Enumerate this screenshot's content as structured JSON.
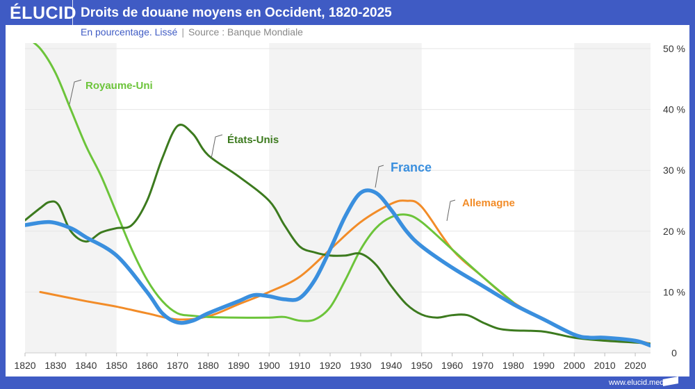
{
  "header": {
    "logo": "ÉLUCID",
    "title": "Droits de douane moyens en Occident, 1820-2025"
  },
  "subtitle": {
    "unit": "En pourcentage. Lissé",
    "separator": "|",
    "source": "Source : Banque Mondiale"
  },
  "footer": {
    "url": "www.elucid.media"
  },
  "colors": {
    "brand": "#3f5bc4",
    "royaume_uni": "#6cc43a",
    "etats_unis": "#3c7a1e",
    "france": "#3a8fde",
    "allemagne": "#f28c28",
    "band": "#f3f3f3"
  },
  "chart_data": {
    "type": "line",
    "title": "Droits de douane moyens en Occident, 1820-2025",
    "xlim": [
      1820,
      2025
    ],
    "ylim": [
      0,
      50
    ],
    "x_ticks": [
      "1820",
      "1830",
      "1840",
      "1850",
      "1860",
      "1870",
      "1880",
      "1890",
      "1900",
      "1910",
      "1920",
      "1930",
      "1940",
      "1950",
      "1960",
      "1970",
      "1980",
      "1990",
      "2000",
      "2010",
      "2020"
    ],
    "y_ticks": [
      "0",
      "10 %",
      "20 %",
      "30 %",
      "40 %",
      "50 %"
    ],
    "y_tick_values": [
      0,
      10,
      20,
      30,
      40,
      50
    ],
    "shaded_bands": [
      [
        1820,
        1850
      ],
      [
        1900,
        1950
      ],
      [
        2000,
        2025
      ]
    ],
    "grid": true,
    "series": [
      {
        "name": "Royaume-Uni",
        "key": "royaume_uni",
        "x": [
          1820,
          1825,
          1830,
          1835,
          1840,
          1845,
          1850,
          1855,
          1860,
          1865,
          1870,
          1875,
          1880,
          1890,
          1900,
          1905,
          1910,
          1915,
          1920,
          1925,
          1930,
          1935,
          1940,
          1945,
          1950,
          1960,
          1970,
          1980
        ],
        "y": [
          52,
          50,
          46,
          40,
          34,
          29,
          23,
          17,
          12,
          8.5,
          6.5,
          6.1,
          5.9,
          5.8,
          5.8,
          5.9,
          5.3,
          5.5,
          7.5,
          12,
          17,
          20.5,
          22.3,
          22.7,
          21.5,
          17,
          12.5,
          8.3
        ]
      },
      {
        "name": "États-Unis",
        "key": "etats_unis",
        "x": [
          1820,
          1825,
          1828,
          1831,
          1835,
          1840,
          1845,
          1850,
          1855,
          1860,
          1865,
          1870,
          1875,
          1880,
          1890,
          1900,
          1905,
          1910,
          1915,
          1920,
          1925,
          1930,
          1935,
          1940,
          1945,
          1950,
          1955,
          1960,
          1965,
          1970,
          1975,
          1980,
          1990,
          2000,
          2010,
          2020,
          2025
        ],
        "y": [
          21.8,
          23.8,
          24.8,
          24.3,
          20,
          18.3,
          19.8,
          20.5,
          21,
          25,
          32,
          37.3,
          36,
          32.5,
          29,
          25,
          21,
          17.5,
          16.5,
          16,
          16,
          16.3,
          14.5,
          11,
          8,
          6.3,
          5.8,
          6.2,
          6.2,
          5,
          4,
          3.7,
          3.5,
          2.5,
          2,
          1.7,
          1.5
        ]
      },
      {
        "name": "France",
        "key": "france",
        "x": [
          1820,
          1828,
          1835,
          1840,
          1850,
          1860,
          1865,
          1870,
          1875,
          1880,
          1890,
          1895,
          1900,
          1905,
          1910,
          1915,
          1920,
          1925,
          1930,
          1935,
          1940,
          1945,
          1950,
          1960,
          1970,
          1980,
          1990,
          2000,
          2005,
          2010,
          2020,
          2025
        ],
        "y": [
          21,
          21.5,
          20.5,
          19,
          16,
          10,
          6.5,
          5,
          5.3,
          6.5,
          8.5,
          9.5,
          9.3,
          8.8,
          9,
          12,
          17,
          22.5,
          26.3,
          26.3,
          23.5,
          20,
          17.5,
          14,
          11,
          8,
          5.5,
          3,
          2.5,
          2.5,
          2,
          1.2
        ]
      },
      {
        "name": "Allemagne",
        "key": "allemagne",
        "x": [
          1825,
          1840,
          1850,
          1860,
          1870,
          1880,
          1890,
          1900,
          1910,
          1920,
          1930,
          1940,
          1945,
          1950,
          1960,
          1970,
          1980,
          1990,
          2000,
          2010,
          2020,
          2025
        ],
        "y": [
          10,
          8.5,
          7.6,
          6.5,
          5.5,
          6,
          8,
          10,
          12.5,
          17,
          21.5,
          24.5,
          25,
          24,
          17,
          12.5,
          8.3,
          5.5,
          3,
          2.2,
          2,
          1.5
        ]
      }
    ],
    "annotations": [
      "Royaume-Uni",
      "États-Unis",
      "France",
      "Allemagne"
    ]
  }
}
